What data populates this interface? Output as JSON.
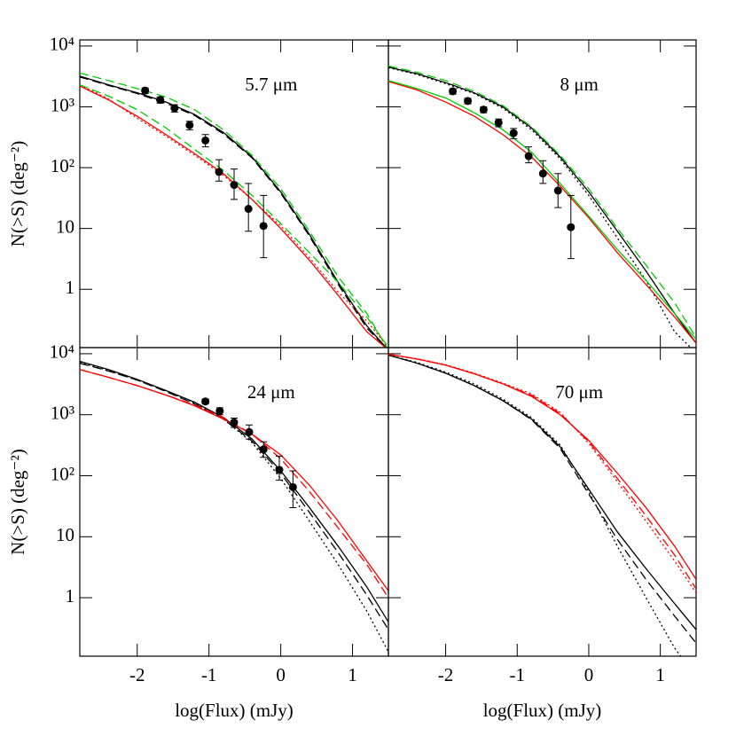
{
  "chart_data": [
    {
      "type": "line",
      "title": "5.7 μm",
      "y_label": "N(>S) (deg⁻²)",
      "log_y": true,
      "xlim": [
        -2.8,
        1.5
      ],
      "ylim": [
        0.11,
        12600
      ],
      "yticks": [
        {
          "value": 10000,
          "label": "10⁴"
        },
        {
          "value": 1000,
          "label": "10³"
        },
        {
          "value": 100,
          "label": "10²"
        },
        10,
        1
      ],
      "x": [
        -2.8,
        -2.4,
        -2.0,
        -1.6,
        -1.2,
        -0.8,
        -0.4,
        0,
        0.4,
        0.8,
        1.2,
        1.5
      ],
      "series": [
        {
          "color": "#000000",
          "dash": "solid",
          "values": [
            3200,
            2300,
            1700,
            1200,
            750,
            380,
            150,
            40,
            8,
            1.3,
            0.25,
            0.1
          ]
        },
        {
          "color": "#000000",
          "dash": "dashed",
          "values": [
            3100,
            2250,
            1650,
            1150,
            720,
            360,
            145,
            38,
            7.5,
            1.2,
            0.23,
            0.1
          ]
        },
        {
          "color": "#00cc00",
          "dash": "dashed",
          "values": [
            3600,
            2700,
            2000,
            1450,
            900,
            420,
            160,
            45,
            9,
            1.6,
            0.4,
            0.1
          ]
        },
        {
          "color": "#ff0000",
          "dash": "solid",
          "values": [
            2200,
            1300,
            700,
            350,
            170,
            80,
            30,
            10,
            3,
            0.8,
            0.2,
            0.1
          ]
        },
        {
          "color": "#ff0000",
          "dash": "dotted",
          "values": [
            2300,
            1350,
            650,
            330,
            160,
            75,
            30,
            11,
            3.3,
            0.9,
            0.3,
            0.11
          ]
        },
        {
          "color": "#00cc00",
          "dash": "dashed",
          "values": [
            2300,
            1500,
            900,
            450,
            200,
            90,
            35,
            12,
            4,
            1.3,
            0.35,
            0.11
          ]
        }
      ],
      "points": {
        "x": [
          -1.89,
          -1.68,
          -1.48,
          -1.27,
          -1.05,
          -0.86,
          -0.65,
          -0.45,
          -0.24
        ],
        "values": [
          1850,
          1300,
          950,
          500,
          280,
          85,
          52,
          21,
          11
        ],
        "lower": [
          1650,
          1150,
          820,
          420,
          220,
          60,
          30,
          9,
          3.3
        ],
        "upper": [
          2050,
          1450,
          1080,
          580,
          350,
          135,
          95,
          55,
          35
        ]
      }
    },
    {
      "type": "line",
      "title": "8 μm",
      "log_y": true,
      "xlim": [
        -2.8,
        1.5
      ],
      "ylim": [
        0.11,
        12600
      ],
      "x": [
        -2.8,
        -2.4,
        -2.0,
        -1.6,
        -1.2,
        -0.8,
        -0.4,
        0,
        0.4,
        0.8,
        1.2,
        1.5
      ],
      "series": [
        {
          "color": "#000000",
          "dash": "solid",
          "values": [
            4500,
            3500,
            2500,
            1700,
            1000,
            450,
            150,
            40,
            9,
            2,
            0.4,
            0.13
          ]
        },
        {
          "color": "#000000",
          "dash": "dotted",
          "values": [
            4400,
            3400,
            2400,
            1650,
            950,
            420,
            140,
            35,
            7,
            1.4,
            0.2,
            0.09
          ]
        },
        {
          "color": "#00cc00",
          "dash": "dashed",
          "values": [
            4700,
            3700,
            2700,
            1800,
            1050,
            470,
            160,
            45,
            10,
            2.5,
            0.6,
            0.16
          ]
        },
        {
          "color": "#ff0000",
          "dash": "solid",
          "values": [
            2600,
            1900,
            1200,
            700,
            350,
            150,
            50,
            15,
            4,
            1.2,
            0.35,
            0.13
          ]
        },
        {
          "color": "#00cc00",
          "dash": "solid",
          "values": [
            2700,
            2000,
            1400,
            800,
            420,
            180,
            55,
            16,
            4.5,
            1.4,
            0.4,
            0.15
          ]
        }
      ],
      "points": {
        "x": [
          -1.9,
          -1.69,
          -1.47,
          -1.26,
          -1.05,
          -0.84,
          -0.64,
          -0.43,
          -0.25
        ],
        "values": [
          1800,
          1250,
          900,
          550,
          370,
          155,
          80,
          42,
          10.5
        ],
        "lower": [
          1620,
          1120,
          800,
          470,
          300,
          120,
          55,
          22,
          3.2
        ],
        "upper": [
          1980,
          1380,
          1000,
          630,
          440,
          220,
          130,
          80,
          35
        ]
      }
    },
    {
      "type": "line",
      "title": "24 μm",
      "y_label": "N(>S) (deg⁻²)",
      "x_label": "log(Flux) (mJy)",
      "log_y": true,
      "xlim": [
        -2.8,
        1.5
      ],
      "ylim": [
        0.11,
        12600
      ],
      "yticks": [
        {
          "value": 10000,
          "label": "10⁴"
        },
        {
          "value": 1000,
          "label": "10³"
        },
        {
          "value": 100,
          "label": "10²"
        },
        10,
        1
      ],
      "xticks": [
        -2,
        -1,
        0,
        1
      ],
      "x": [
        -2.8,
        -2.4,
        -2.0,
        -1.6,
        -1.2,
        -0.8,
        -0.4,
        0,
        0.4,
        0.8,
        1.2,
        1.5
      ],
      "series": [
        {
          "color": "#000000",
          "dash": "solid",
          "values": [
            7500,
            5500,
            3800,
            2500,
            1600,
            900,
            400,
            120,
            30,
            7,
            1.5,
            0.4
          ]
        },
        {
          "color": "#000000",
          "dash": "dashed",
          "values": [
            7000,
            5200,
            3700,
            2400,
            1500,
            850,
            370,
            110,
            25,
            5.5,
            1.1,
            0.3
          ]
        },
        {
          "color": "#000000",
          "dash": "dotted",
          "values": [
            7200,
            5300,
            3700,
            2450,
            1550,
            850,
            350,
            90,
            18,
            3.5,
            0.6,
            0.13
          ]
        },
        {
          "color": "#ff0000",
          "dash": "solid",
          "values": [
            5500,
            4100,
            3000,
            2100,
            1400,
            850,
            480,
            220,
            70,
            18,
            4,
            1.3
          ]
        },
        {
          "color": "#ff0000",
          "dash": "dashed",
          "values": [
            5500,
            4100,
            3000,
            2100,
            1450,
            900,
            480,
            190,
            55,
            14,
            3.5,
            1.0
          ]
        }
      ],
      "points": {
        "x": [
          -1.05,
          -0.85,
          -0.65,
          -0.44,
          -0.24,
          -0.02,
          0.17
        ],
        "values": [
          1650,
          1150,
          750,
          520,
          270,
          125,
          65
        ],
        "lower": [
          1500,
          1000,
          620,
          400,
          200,
          85,
          30
        ],
        "upper": [
          1800,
          1300,
          880,
          680,
          360,
          210,
          120
        ]
      }
    },
    {
      "type": "line",
      "title": "70 μm",
      "x_label": "log(Flux) (mJy)",
      "log_y": true,
      "xlim": [
        -2.8,
        1.5
      ],
      "ylim": [
        0.11,
        12600
      ],
      "xticks": [
        -2,
        -1,
        0,
        1
      ],
      "x": [
        -2.8,
        -2.4,
        -2.0,
        -1.6,
        -1.2,
        -0.8,
        -0.4,
        0,
        0.4,
        0.8,
        1.2,
        1.5
      ],
      "series": [
        {
          "color": "#000000",
          "dash": "solid",
          "values": [
            9500,
            7000,
            4800,
            3000,
            1700,
            850,
            300,
            60,
            12,
            3,
            0.8,
            0.3
          ]
        },
        {
          "color": "#000000",
          "dash": "dashed",
          "values": [
            9500,
            7000,
            4800,
            3000,
            1700,
            830,
            280,
            50,
            9,
            2,
            0.5,
            0.18
          ]
        },
        {
          "color": "#000000",
          "dash": "dotted",
          "values": [
            9500,
            7200,
            5000,
            3200,
            1800,
            900,
            320,
            55,
            7,
            1,
            0.15,
            0.05
          ]
        },
        {
          "color": "#ff0000",
          "dash": "solid",
          "values": [
            9800,
            8200,
            6500,
            4700,
            3200,
            2000,
            1000,
            380,
            110,
            30,
            7,
            2
          ]
        },
        {
          "color": "#ff0000",
          "dash": "dashed",
          "values": [
            9800,
            8200,
            6500,
            4700,
            3200,
            2100,
            1050,
            360,
            90,
            22,
            5,
            1.4
          ]
        },
        {
          "color": "#ff0000",
          "dash": "dotted",
          "values": [
            9800,
            8300,
            6600,
            4800,
            3300,
            2200,
            1100,
            340,
            80,
            18,
            4,
            1.2
          ]
        }
      ]
    }
  ]
}
